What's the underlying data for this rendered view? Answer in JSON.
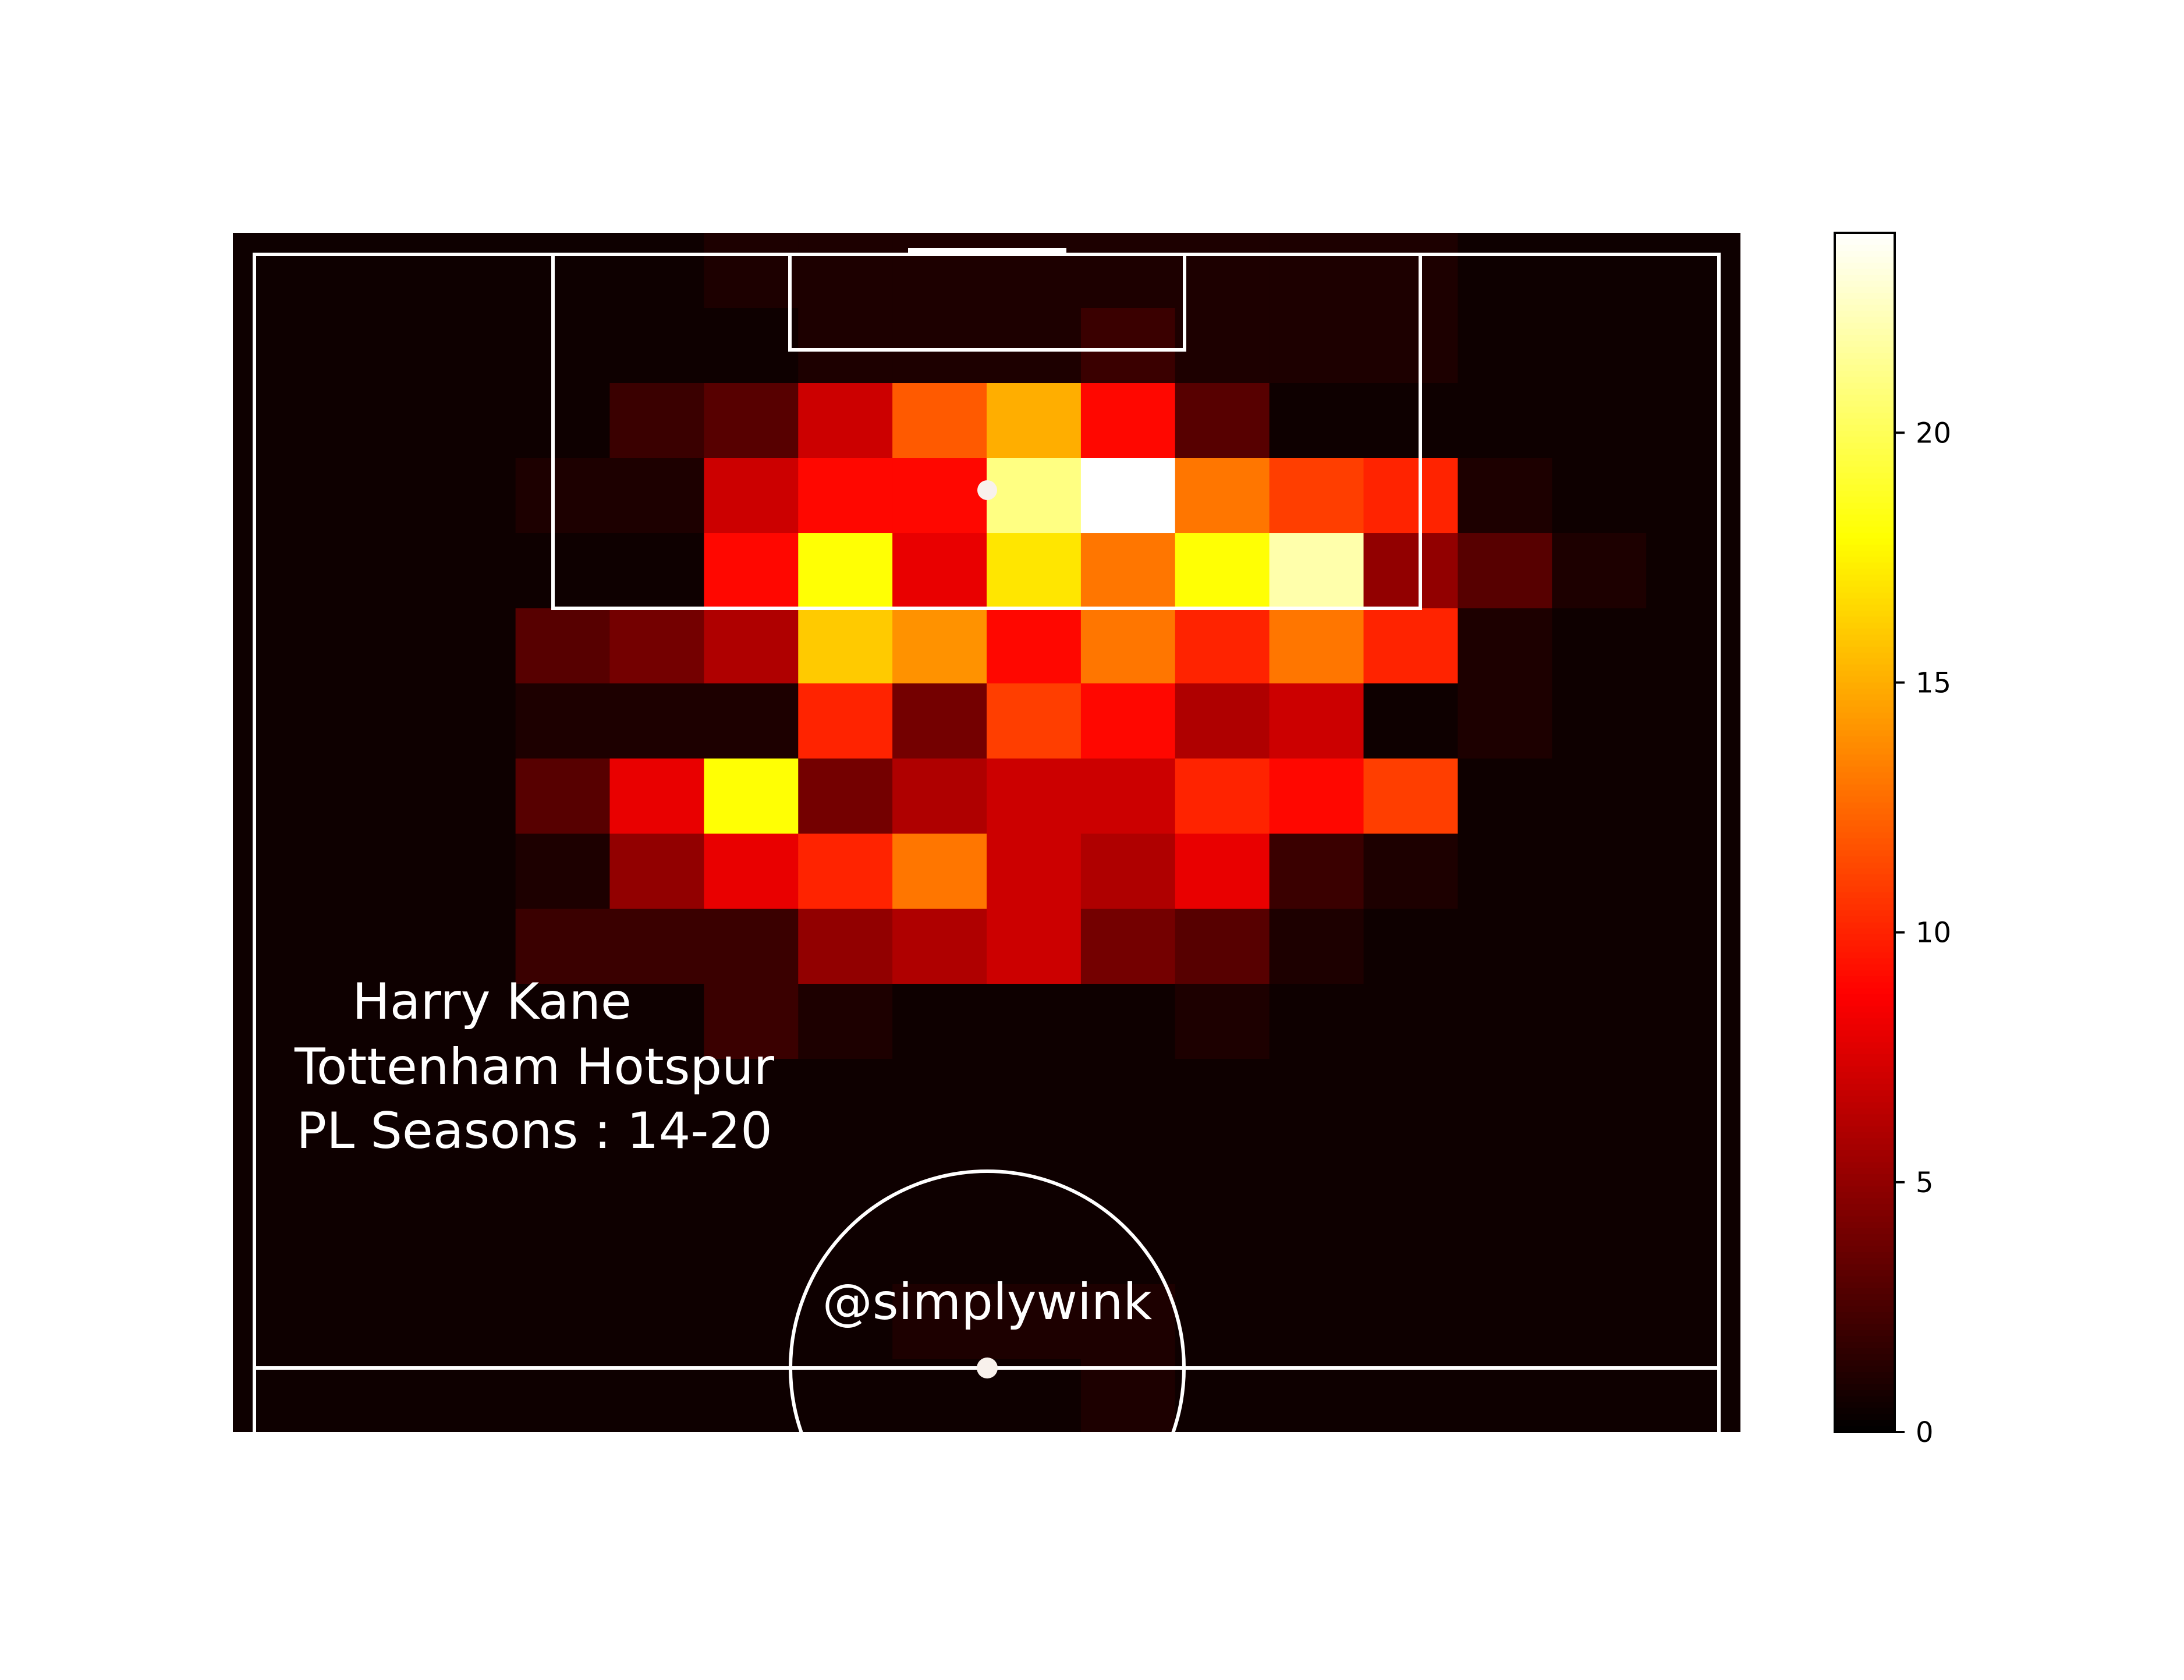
{
  "chart_data": {
    "type": "heatmap",
    "cols": 16,
    "rows": 16,
    "first_row": 0,
    "z_min": 0,
    "z_max": 24,
    "colormap": [
      "#000000",
      "#ff0000",
      "#ffff00",
      "#ffffff"
    ],
    "colormap_stops": [
      0,
      0.365,
      0.746,
      1
    ],
    "values": [
      [
        0,
        0,
        0,
        0,
        0,
        1,
        1,
        1,
        1,
        1,
        1,
        1,
        1,
        0,
        0,
        0
      ],
      [
        0,
        0,
        0,
        0,
        0,
        0,
        1,
        1,
        1,
        2,
        1,
        1,
        1,
        0,
        0,
        0
      ],
      [
        0,
        0,
        0,
        0,
        2,
        3,
        7,
        12,
        15,
        9,
        3,
        0,
        0,
        0,
        0,
        0
      ],
      [
        0,
        0,
        0,
        1,
        1,
        7,
        9,
        9,
        21,
        24,
        13,
        11,
        10,
        1,
        0,
        0
      ],
      [
        0,
        0,
        0,
        0,
        0,
        9,
        18,
        8,
        17,
        13,
        18,
        22,
        5,
        3,
        1,
        0
      ],
      [
        0,
        0,
        0,
        3,
        4,
        6,
        16,
        14,
        9,
        13,
        10,
        13,
        10,
        1,
        0,
        0
      ],
      [
        0,
        0,
        0,
        1,
        1,
        1,
        10,
        4,
        11,
        9,
        6,
        7,
        0,
        1,
        0,
        0
      ],
      [
        0,
        0,
        0,
        3,
        8,
        18,
        4,
        6,
        7,
        7,
        10,
        9,
        11,
        0,
        0,
        0
      ],
      [
        0,
        0,
        0,
        1,
        5,
        8,
        10,
        13,
        7,
        6,
        8,
        2,
        1,
        0,
        0,
        0
      ],
      [
        0,
        0,
        0,
        2,
        2,
        2,
        5,
        6,
        7,
        4,
        3,
        1,
        0,
        0,
        0,
        0
      ],
      [
        0,
        0,
        0,
        0,
        0,
        2,
        1,
        0,
        0,
        0,
        1,
        0,
        0,
        0,
        0,
        0
      ],
      [
        0,
        0,
        0,
        0,
        0,
        0,
        0,
        0,
        0,
        0,
        0,
        0,
        0,
        0,
        0,
        0
      ],
      [
        0,
        0,
        0,
        0,
        0,
        0,
        0,
        0,
        0,
        0,
        0,
        0,
        0,
        0,
        0,
        0
      ],
      [
        0,
        0,
        0,
        0,
        0,
        0,
        0,
        0,
        0,
        0,
        0,
        0,
        0,
        0,
        0,
        0
      ],
      [
        0,
        0,
        0,
        0,
        0,
        0,
        0,
        1,
        1,
        1,
        0,
        0,
        0,
        0,
        0,
        0
      ],
      [
        0,
        0,
        0,
        0,
        0,
        0,
        0,
        0,
        0,
        1,
        0,
        0,
        0,
        0,
        0,
        0
      ]
    ],
    "colorbar": {
      "ticks": [
        0,
        5,
        10,
        15,
        20
      ],
      "tick_labels": [
        "0",
        "5",
        "10",
        "15",
        "20"
      ]
    },
    "annotations": {
      "player_line1": "Harry Kane",
      "player_line2": "Tottenham Hotspur",
      "player_line3": "PL Seasons : 14-20",
      "watermark": "@simplywink"
    },
    "grid": false,
    "legend": "colorbar-right"
  }
}
